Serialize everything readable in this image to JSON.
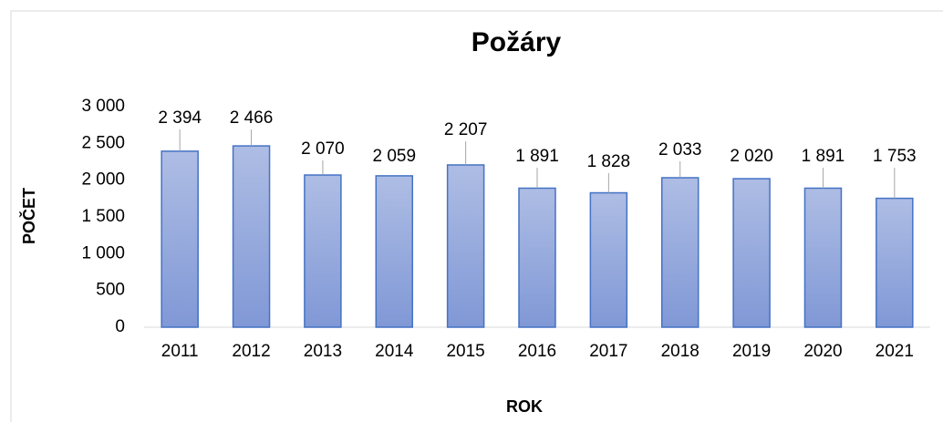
{
  "chart_data": {
    "type": "bar",
    "title": "Požáry",
    "x_label": "ROK",
    "y_label": "POČET",
    "categories": [
      "2011",
      "2012",
      "2013",
      "2014",
      "2015",
      "2016",
      "2017",
      "2018",
      "2019",
      "2020",
      "2021"
    ],
    "values": [
      2394,
      2466,
      2070,
      2059,
      2207,
      1891,
      1828,
      2033,
      2020,
      1891,
      1753
    ],
    "value_labels": [
      "2 394",
      "2 466",
      "2 070",
      "2 059",
      "2 207",
      "1 891",
      "1 828",
      "2 033",
      "2 020",
      "1 891",
      "1 753"
    ],
    "color": "#4472c4",
    "ylim": [
      0,
      3000
    ],
    "yticks": [
      0,
      500,
      {
        "value": 1000,
        "label": "1 000"
      },
      {
        "value": 1500,
        "label": "1 500"
      },
      {
        "value": 2000,
        "label": "2 000"
      },
      {
        "value": 2500,
        "label": "2 500"
      },
      {
        "value": 3000,
        "label": "3 000"
      }
    ],
    "grid": false
  }
}
